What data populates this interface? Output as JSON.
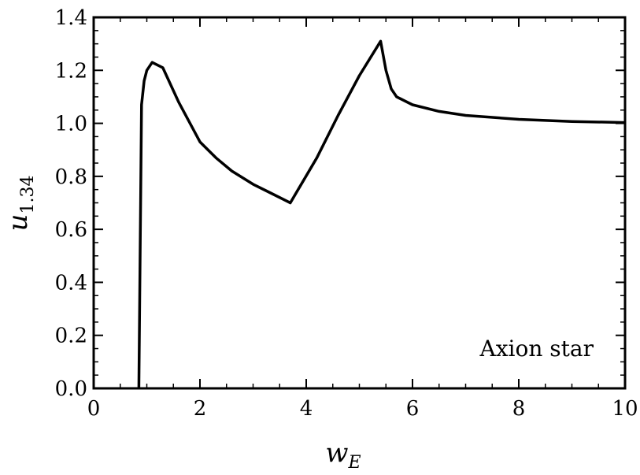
{
  "chart_data": {
    "type": "line",
    "title": "",
    "xlabel": {
      "main": "w",
      "sub": "E"
    },
    "ylabel": {
      "main": "u",
      "sub": "1.34"
    },
    "xlim": [
      0,
      10
    ],
    "ylim": [
      0,
      1.4
    ],
    "xticks": [
      "0",
      "2",
      "4",
      "6",
      "8",
      "10"
    ],
    "yticks": [
      "0.0",
      "0.2",
      "0.4",
      "0.6",
      "0.8",
      "1.0",
      "1.2",
      "1.4"
    ],
    "grid": false,
    "annotation": "Axion star",
    "series": [
      {
        "color": "#000000",
        "x": [
          0.85,
          0.9,
          0.95,
          1.0,
          1.1,
          1.3,
          1.6,
          2.0,
          2.3,
          2.6,
          3.0,
          3.3,
          3.7,
          4.2,
          4.6,
          5.0,
          5.4,
          5.5,
          5.6,
          5.7,
          6.0,
          6.5,
          7.0,
          8.0,
          9.0,
          10.0
        ],
        "y": [
          0.0,
          1.07,
          1.16,
          1.2,
          1.23,
          1.21,
          1.08,
          0.93,
          0.87,
          0.82,
          0.77,
          0.74,
          0.7,
          0.87,
          1.03,
          1.18,
          1.31,
          1.2,
          1.13,
          1.1,
          1.07,
          1.045,
          1.03,
          1.015,
          1.007,
          1.003
        ]
      }
    ]
  }
}
